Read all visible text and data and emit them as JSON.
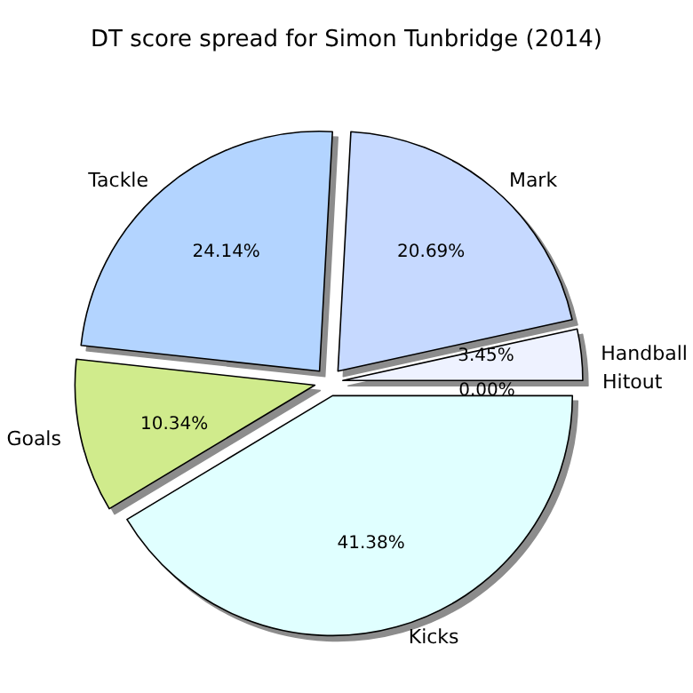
{
  "chart_data": {
    "type": "pie",
    "title": "DT score spread for Simon Tunbridge (2014)",
    "categories": [
      "Hitout",
      "Handball",
      "Mark",
      "Tackle",
      "Goals",
      "Kicks"
    ],
    "values": [
      0.0,
      3.45,
      20.69,
      24.14,
      10.34,
      41.38
    ],
    "value_labels": [
      "0.00%",
      "3.45%",
      "20.69%",
      "24.14%",
      "10.34%",
      "41.38%"
    ],
    "colors": [
      "#d8e6ff",
      "#eef2ff",
      "#c6d9ff",
      "#b3d4ff",
      "#d0eb8c",
      "#e0ffff"
    ]
  }
}
